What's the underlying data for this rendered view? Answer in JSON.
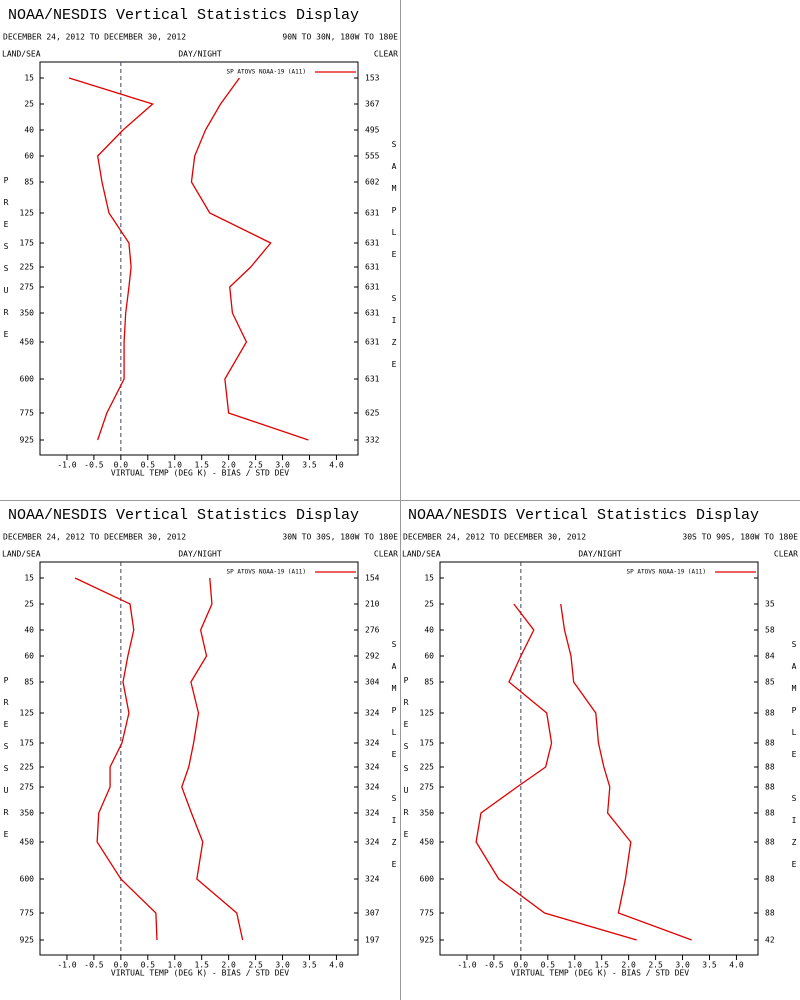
{
  "chart_data": [
    {
      "type": "line",
      "title": "NOAA/NESDIS Vertical Statistics Display",
      "subtitle": "DECEMBER 24, 2012 TO DECEMBER 30, 2012",
      "region": "90N TO 30N, 180W TO 180E",
      "land_sea": "LAND/SEA",
      "day_night": "DAY/NIGHT",
      "clear": "CLEAR",
      "ylabel": "PRESSURE",
      "y2label": "SAMPLE SIZE",
      "xlabel": "VIRTUAL TEMP (DEG K) - BIAS / STD DEV",
      "legend": "SP ATOVS NOAA-19 (A11)",
      "categories": [
        "15",
        "25",
        "40",
        "60",
        "85",
        "125",
        "175",
        "225",
        "275",
        "350",
        "450",
        "600",
        "775",
        "925"
      ],
      "samples": [
        "153",
        "367",
        "495",
        "555",
        "602",
        "631",
        "631",
        "631",
        "631",
        "631",
        "631",
        "631",
        "625",
        "332"
      ],
      "series": [
        {
          "color": "#e00000",
          "values": [
            -0.96,
            0.59,
            0.04,
            -0.43,
            -0.35,
            -0.22,
            0.15,
            0.19,
            0.15,
            0.09,
            0.06,
            0.06,
            -0.26,
            -0.43
          ]
        },
        {
          "color": "#e00000",
          "values": [
            2.2,
            1.85,
            1.57,
            1.37,
            1.31,
            1.65,
            2.78,
            2.41,
            2.02,
            2.07,
            2.33,
            1.93,
            2.0,
            3.48
          ]
        }
      ],
      "xlim": [
        -1.5,
        4.4
      ],
      "xticks": [
        {
          "value": -1,
          "label": "-1.0"
        },
        -0.5,
        {
          "value": 0,
          "label": "0.0"
        },
        0.5,
        {
          "value": 1,
          "label": "1.0"
        },
        1.5,
        {
          "value": 2,
          "label": "2.0"
        },
        2.5,
        {
          "value": 3,
          "label": "3.0"
        },
        3.5,
        {
          "value": 4,
          "label": "4.0"
        }
      ]
    },
    {
      "type": "line",
      "title": "NOAA/NESDIS Vertical Statistics Display",
      "subtitle": "DECEMBER 24, 2012 TO DECEMBER 30, 2012",
      "region": "30N TO 30S, 180W TO 180E",
      "land_sea": "LAND/SEA",
      "day_night": "DAY/NIGHT",
      "clear": "CLEAR",
      "ylabel": "PRESSURE",
      "y2label": "SAMPLE SIZE",
      "xlabel": "VIRTUAL TEMP (DEG K) - BIAS / STD DEV",
      "legend": "SP ATOVS NOAA-19 (A11)",
      "categories": [
        "15",
        "25",
        "40",
        "60",
        "85",
        "125",
        "175",
        "225",
        "275",
        "350",
        "450",
        "600",
        "775",
        "925"
      ],
      "samples": [
        "154",
        "210",
        "276",
        "292",
        "304",
        "324",
        "324",
        "324",
        "324",
        "324",
        "324",
        "324",
        "307",
        "197"
      ],
      "series": [
        {
          "color": "#e00000",
          "values": [
            -0.85,
            0.17,
            0.24,
            0.13,
            0.04,
            0.15,
            0.02,
            -0.2,
            -0.2,
            -0.41,
            -0.44,
            0.0,
            0.65,
            0.67
          ]
        },
        {
          "color": "#e00000",
          "values": [
            1.65,
            1.69,
            1.48,
            1.59,
            1.3,
            1.44,
            1.35,
            1.26,
            1.13,
            1.31,
            1.52,
            1.41,
            2.15,
            2.26
          ]
        }
      ],
      "xlim": [
        -1.5,
        4.4
      ],
      "xticks": [
        {
          "value": -1,
          "label": "-1.0"
        },
        -0.5,
        {
          "value": 0,
          "label": "0.0"
        },
        0.5,
        {
          "value": 1,
          "label": "1.0"
        },
        1.5,
        {
          "value": 2,
          "label": "2.0"
        },
        2.5,
        {
          "value": 3,
          "label": "3.0"
        },
        3.5,
        {
          "value": 4,
          "label": "4.0"
        }
      ]
    },
    {
      "type": "line",
      "title": "NOAA/NESDIS Vertical Statistics Display",
      "subtitle": "DECEMBER 24, 2012 TO DECEMBER 30, 2012",
      "region": "30S TO 90S, 180W TO 180E",
      "land_sea": "LAND/SEA",
      "day_night": "DAY/NIGHT",
      "clear": "CLEAR",
      "ylabel": "PRESSURE",
      "y2label": "SAMPLE SIZE",
      "xlabel": "VIRTUAL TEMP (DEG K) - BIAS / STD DEV",
      "legend": "SP ATOVS NOAA-19 (A11)",
      "categories": [
        "15",
        "25",
        "40",
        "60",
        "85",
        "125",
        "175",
        "225",
        "275",
        "350",
        "450",
        "600",
        "775",
        "925"
      ],
      "samples": [
        null,
        "35",
        "58",
        "84",
        "85",
        "88",
        "88",
        "88",
        "88",
        "88",
        "88",
        "88",
        "88",
        "42"
      ],
      "series": [
        {
          "color": "#e00000",
          "values": [
            null,
            -0.13,
            0.24,
            0.0,
            -0.22,
            0.48,
            0.57,
            0.46,
            -0.07,
            -0.74,
            -0.83,
            -0.41,
            0.44,
            2.15
          ]
        },
        {
          "color": "#e00000",
          "values": [
            null,
            0.74,
            0.81,
            0.93,
            0.98,
            1.39,
            1.44,
            1.54,
            1.65,
            1.61,
            2.04,
            1.94,
            1.81,
            3.17
          ]
        }
      ],
      "xlim": [
        -1.5,
        4.4
      ],
      "xticks": [
        {
          "value": -1,
          "label": "-1.0"
        },
        -0.5,
        {
          "value": 0,
          "label": "0.0"
        },
        0.5,
        {
          "value": 1,
          "label": "1.0"
        },
        1.5,
        {
          "value": 2,
          "label": "2.0"
        },
        2.5,
        {
          "value": 3,
          "label": "3.0"
        },
        3.5,
        {
          "value": 4,
          "label": "4.0"
        }
      ]
    }
  ]
}
